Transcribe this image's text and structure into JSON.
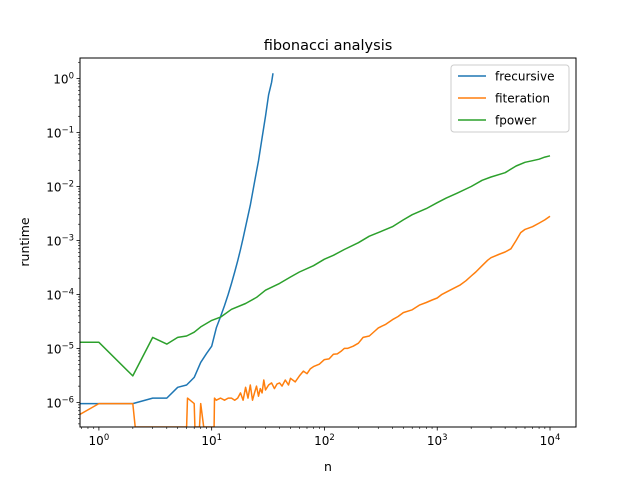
{
  "chart_data": {
    "type": "line",
    "title": "fibonacci analysis",
    "xlabel": "n",
    "ylabel": "runtime",
    "xscale": "log",
    "yscale": "log",
    "xlim": [
      0.68,
      17000
    ],
    "ylim": [
      3.5e-07,
      2.4
    ],
    "grid": false,
    "legend_position": "upper right",
    "x_ticks": [
      {
        "value": 1,
        "base": "10",
        "exp": "0"
      },
      {
        "value": 10,
        "base": "10",
        "exp": "1"
      },
      {
        "value": 100,
        "base": "10",
        "exp": "2"
      },
      {
        "value": 1000,
        "base": "10",
        "exp": "3"
      },
      {
        "value": 10000,
        "base": "10",
        "exp": "4"
      }
    ],
    "y_ticks": [
      {
        "value": 1e-06,
        "base": "10",
        "exp": "−6"
      },
      {
        "value": 1e-05,
        "base": "10",
        "exp": "−5"
      },
      {
        "value": 0.0001,
        "base": "10",
        "exp": "−4"
      },
      {
        "value": 0.001,
        "base": "10",
        "exp": "−3"
      },
      {
        "value": 0.01,
        "base": "10",
        "exp": "−2"
      },
      {
        "value": 0.1,
        "base": "10",
        "exp": "−1"
      },
      {
        "value": 1,
        "base": "10",
        "exp": "0"
      }
    ],
    "series": [
      {
        "name": "frecursive",
        "color": "#1f77b4",
        "x": [
          0,
          1,
          2,
          3,
          4,
          5,
          6,
          7,
          8,
          9,
          10,
          11,
          12,
          13,
          14,
          15,
          16,
          17,
          18,
          19,
          20,
          22,
          24,
          26,
          28,
          30,
          32,
          34,
          35
        ],
        "y": [
          9.5e-07,
          9.5e-07,
          9.5e-07,
          1.2e-06,
          1.2e-06,
          1.9e-06,
          2.1e-06,
          2.9e-06,
          5.5e-06,
          8e-06,
          1.1e-05,
          2.4e-05,
          3.9e-05,
          6.2e-05,
          0.0001,
          0.00016,
          0.00026,
          0.00042,
          0.00068,
          0.0011,
          0.0018,
          0.0045,
          0.012,
          0.03,
          0.08,
          0.2,
          0.5,
          0.85,
          1.25
        ]
      },
      {
        "name": "fiteration",
        "color": "#ff7f0e",
        "x": [
          0,
          1,
          2,
          2.1,
          6,
          6.1,
          7,
          7.1,
          7.8,
          8,
          8.5,
          9.5,
          10.5,
          10.6,
          11,
          12,
          13,
          14,
          15,
          16,
          17,
          18,
          19,
          20,
          21,
          22,
          23,
          24,
          25,
          26,
          27,
          28,
          29,
          30,
          32,
          34,
          36,
          38,
          40,
          42,
          45,
          48,
          50,
          55,
          60,
          65,
          70,
          75,
          80,
          90,
          100,
          110,
          120,
          130,
          140,
          150,
          160,
          180,
          200,
          220,
          250,
          280,
          300,
          350,
          400,
          450,
          500,
          600,
          700,
          800,
          900,
          1000,
          1100,
          1200,
          1400,
          1600,
          1800,
          2000,
          2200,
          2500,
          2800,
          3000,
          3500,
          4000,
          4500,
          5000,
          5500,
          6000,
          7000,
          8000,
          9000,
          10000
        ],
        "y": [
          6e-07,
          9.5e-07,
          9.5e-07,
          3.5e-07,
          3.5e-07,
          1.2e-06,
          9.5e-07,
          3.5e-07,
          3.5e-07,
          9.5e-07,
          3.5e-07,
          3.5e-07,
          3.5e-07,
          1.2e-06,
          1.1e-06,
          1.2e-06,
          1.1e-06,
          1.2e-06,
          1.2e-06,
          1.1e-06,
          1.2e-06,
          1.5e-06,
          1.1e-06,
          1.9e-06,
          1.2e-06,
          2.1e-06,
          1.1e-06,
          1.5e-06,
          2e-06,
          1.3e-06,
          1.8e-06,
          1.5e-06,
          2.6e-06,
          1.7e-06,
          2.1e-06,
          2.3e-06,
          1.8e-06,
          2.2e-06,
          2.3e-06,
          2e-06,
          2.6e-06,
          2.1e-06,
          2.8e-06,
          2.4e-06,
          3.1e-06,
          3.8e-06,
          3.4e-06,
          4.2e-06,
          4.6e-06,
          5.1e-06,
          6.2e-06,
          6.4e-06,
          7.8e-06,
          7.9e-06,
          8.8e-06,
          1e-05,
          1e-05,
          1.1e-05,
          1.25e-05,
          1.6e-05,
          1.7e-05,
          2.1e-05,
          2.4e-05,
          2.8e-05,
          3.4e-05,
          3.9e-05,
          4.6e-05,
          5.2e-05,
          6.4e-05,
          7.1e-05,
          7.9e-05,
          8.6e-05,
          0.0001,
          0.00011,
          0.00013,
          0.00015,
          0.00018,
          0.00022,
          0.00026,
          0.00034,
          0.00043,
          0.00048,
          0.00055,
          0.00061,
          0.0007,
          0.001,
          0.0014,
          0.0016,
          0.0018,
          0.0021,
          0.0024,
          0.0028
        ]
      },
      {
        "name": "fpower",
        "color": "#2ca02c",
        "x": [
          0,
          1,
          2,
          3,
          4,
          5,
          6,
          7,
          8,
          10,
          12,
          15,
          20,
          25,
          30,
          40,
          50,
          60,
          80,
          100,
          120,
          150,
          200,
          250,
          300,
          400,
          500,
          600,
          800,
          1000,
          1200,
          1500,
          2000,
          2500,
          3000,
          4000,
          5000,
          6000,
          7000,
          8000,
          9000,
          10000
        ],
        "y": [
          1.3e-05,
          1.3e-05,
          3.1e-06,
          1.6e-05,
          1.2e-05,
          1.6e-05,
          1.7e-05,
          2e-05,
          2.5e-05,
          3.3e-05,
          3.8e-05,
          5.3e-05,
          6.8e-05,
          8.8e-05,
          0.00012,
          0.00016,
          0.00021,
          0.00026,
          0.00034,
          0.00045,
          0.00053,
          0.00068,
          0.00091,
          0.0012,
          0.0014,
          0.0018,
          0.0024,
          0.003,
          0.0039,
          0.005,
          0.0061,
          0.0075,
          0.01,
          0.013,
          0.015,
          0.018,
          0.024,
          0.028,
          0.03,
          0.032,
          0.035,
          0.037
        ]
      }
    ]
  }
}
